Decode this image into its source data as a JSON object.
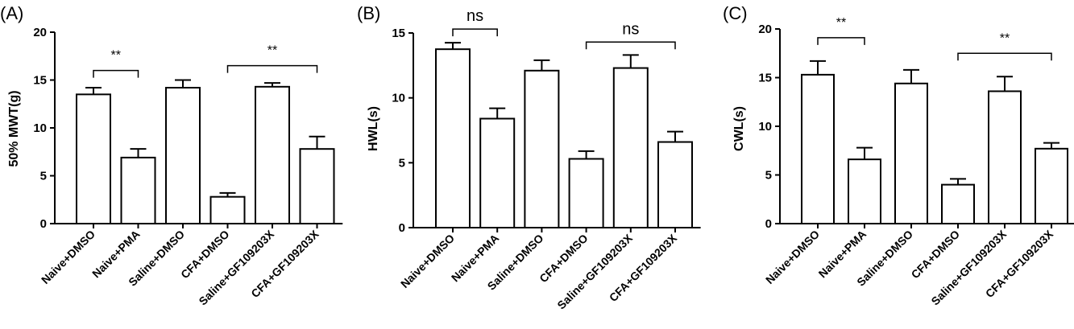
{
  "chart_data": [
    {
      "type": "bar",
      "panel_label": "(A)",
      "ylabel": "50% MWT(g)",
      "ylim": [
        0,
        20
      ],
      "yticks": [
        "0",
        "5",
        "10",
        "15",
        "20"
      ],
      "categories": [
        "Naive+DMSO",
        "Naive+PMA",
        "Saline+DMSO",
        "CFA+DMSO",
        "Saline+GF109203X",
        "CFA+GF109203X"
      ],
      "values": [
        13.5,
        6.9,
        14.2,
        2.8,
        14.3,
        7.8
      ],
      "errors": [
        0.7,
        0.9,
        0.8,
        0.4,
        0.4,
        1.3
      ],
      "annotations": [
        {
          "label": "**",
          "from": 0,
          "to": 1,
          "y": 16.0
        },
        {
          "label": "**",
          "from": 3,
          "to": 5,
          "y": 16.5
        }
      ]
    },
    {
      "type": "bar",
      "panel_label": "(B)",
      "ylabel": "HWL(s)",
      "ylim": [
        0,
        15
      ],
      "yticks": [
        "0",
        "5",
        "10",
        "15"
      ],
      "categories": [
        "Naive+DMSO",
        "Naive+PMA",
        "Saline+DMSO",
        "CFA+DMSO",
        "Saline+GF109203X",
        "CFA+GF109203X"
      ],
      "values": [
        13.75,
        8.4,
        12.1,
        5.3,
        12.3,
        6.6
      ],
      "errors": [
        0.5,
        0.8,
        0.8,
        0.6,
        1.0,
        0.8
      ],
      "annotations": [
        {
          "label": "ns",
          "from": 0,
          "to": 1,
          "y": 15.3
        },
        {
          "label": "ns",
          "from": 3,
          "to": 5,
          "y": 14.3
        }
      ]
    },
    {
      "type": "bar",
      "panel_label": "(C)",
      "ylabel": "CWL(s)",
      "ylim": [
        0,
        20
      ],
      "yticks": [
        "0",
        "5",
        "10",
        "15",
        "20"
      ],
      "categories": [
        "Naive+DMSO",
        "Naive+PMA",
        "Saline+DMSO",
        "CFA+DMSO",
        "Saline+GF109203X",
        "CFA+GF109203X"
      ],
      "values": [
        15.3,
        6.6,
        14.4,
        4.0,
        13.6,
        7.7
      ],
      "errors": [
        1.4,
        1.2,
        1.4,
        0.6,
        1.5,
        0.6
      ],
      "annotations": [
        {
          "label": "**",
          "from": 0,
          "to": 1,
          "y": 19.1
        },
        {
          "label": "**",
          "from": 3,
          "to": 5,
          "y": 17.5
        }
      ]
    }
  ]
}
